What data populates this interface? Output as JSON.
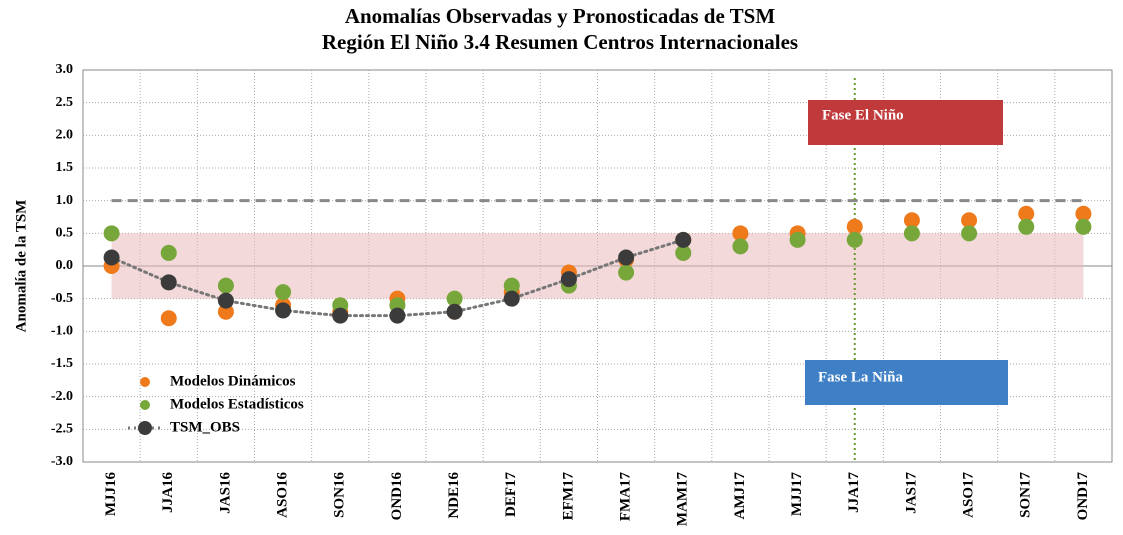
{
  "chart_data": {
    "type": "scatter",
    "title": "Anomalías Observadas y Pronosticadas de TSM",
    "subtitle": "Región El Niño 3.4 Resumen Centros Internacionales",
    "y_label": "Anomalía de la TSM",
    "categories": [
      "MJJ16",
      "JJA16",
      "JAS16",
      "ASO16",
      "SON16",
      "OND16",
      "NDE16",
      "DEF17",
      "EFM17",
      "FMA17",
      "MAM17",
      "AMJ17",
      "MJJ17",
      "JJA17",
      "JAS17",
      "ASO17",
      "SON17",
      "OND17"
    ],
    "series": [
      {
        "name": "Modelos Dinámicos",
        "color": "#ee7a1c",
        "values": [
          0.0,
          -0.8,
          -0.7,
          -0.6,
          -0.7,
          -0.5,
          -0.7,
          -0.4,
          -0.1,
          0.1,
          0.4,
          0.5,
          0.5,
          0.6,
          0.7,
          0.7,
          0.8,
          0.8
        ]
      },
      {
        "name": "Modelos Estadísticos",
        "color": "#77a63a",
        "values": [
          0.5,
          0.2,
          -0.3,
          -0.4,
          -0.6,
          -0.6,
          -0.5,
          -0.3,
          -0.3,
          -0.1,
          0.2,
          0.3,
          0.4,
          0.4,
          0.5,
          0.5,
          0.6,
          0.6
        ]
      },
      {
        "name": "TSM_OBS",
        "color": "#3b3b3b",
        "values": [
          0.13,
          -0.25,
          -0.53,
          -0.68,
          -0.76,
          -0.76,
          -0.7,
          -0.5,
          -0.2,
          0.13,
          0.4,
          null,
          null,
          null,
          null,
          null,
          null,
          null
        ]
      }
    ],
    "ylim": [
      -3,
      3
    ],
    "yticks": [
      {
        "value": -3,
        "label": "-3.0"
      },
      -2.5,
      {
        "value": -2,
        "label": "-2.0"
      },
      -1.5,
      {
        "value": -1,
        "label": "-1.0"
      },
      -0.5,
      {
        "value": 0,
        "label": "0.0"
      },
      0.5,
      {
        "value": 1,
        "label": "1.0"
      },
      1.5,
      {
        "value": 2,
        "label": "2.0"
      },
      2.5,
      {
        "value": 3,
        "label": "3.0"
      }
    ],
    "shaded_range": [
      -0.5,
      0.5
    ],
    "threshold": 1.0,
    "annotations": [
      "Fase El Niño",
      "Fase La Niña"
    ],
    "grid": true
  }
}
